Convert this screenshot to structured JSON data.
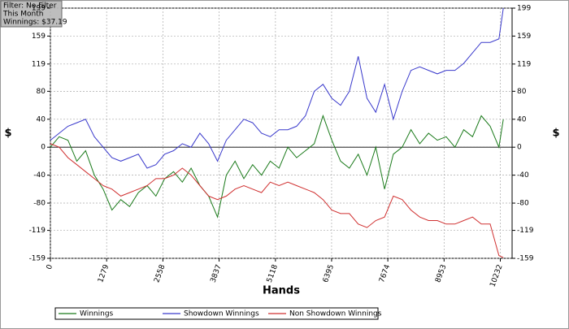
{
  "chart_data": {
    "type": "line",
    "annotations": [
      "Filter: No Filter",
      "This Month",
      "Winnings: $37.19"
    ],
    "x_label": "Hands",
    "y_label": "$",
    "x": [
      0,
      200,
      400,
      600,
      800,
      1000,
      1200,
      1400,
      1600,
      1800,
      2000,
      2200,
      2400,
      2600,
      2800,
      3000,
      3200,
      3400,
      3600,
      3800,
      4000,
      4200,
      4400,
      4600,
      4800,
      5000,
      5200,
      5400,
      5600,
      5800,
      6000,
      6200,
      6400,
      6600,
      6800,
      7000,
      7200,
      7400,
      7600,
      7800,
      8000,
      8200,
      8400,
      8600,
      8800,
      9000,
      9200,
      9400,
      9600,
      9800,
      10000,
      10200,
      10300
    ],
    "series": [
      {
        "name": "Winnings",
        "color": "#1a7a1a",
        "values": [
          0,
          15,
          10,
          -20,
          -5,
          -40,
          -60,
          -90,
          -75,
          -85,
          -65,
          -55,
          -70,
          -45,
          -35,
          -50,
          -30,
          -55,
          -70,
          -100,
          -40,
          -20,
          -45,
          -25,
          -40,
          -20,
          -30,
          0,
          -15,
          -5,
          5,
          45,
          10,
          -20,
          -30,
          -10,
          -40,
          0,
          -60,
          -10,
          0,
          25,
          5,
          20,
          10,
          15,
          0,
          25,
          15,
          45,
          30,
          0,
          40
        ]
      },
      {
        "name": "Showdown Winnings",
        "color": "#3a3acc",
        "values": [
          10,
          20,
          30,
          35,
          40,
          15,
          0,
          -15,
          -20,
          -15,
          -10,
          -30,
          -25,
          -10,
          -5,
          5,
          0,
          20,
          5,
          -20,
          10,
          25,
          40,
          35,
          20,
          15,
          25,
          25,
          30,
          45,
          80,
          90,
          70,
          60,
          80,
          130,
          70,
          50,
          90,
          40,
          80,
          110,
          115,
          110,
          105,
          110,
          110,
          120,
          135,
          150,
          150,
          155,
          199
        ]
      },
      {
        "name": "Non Showdown Winnings",
        "color": "#d03030",
        "values": [
          5,
          0,
          -15,
          -25,
          -35,
          -45,
          -55,
          -60,
          -70,
          -65,
          -60,
          -55,
          -45,
          -45,
          -40,
          -30,
          -40,
          -55,
          -70,
          -75,
          -70,
          -60,
          -55,
          -60,
          -65,
          -50,
          -55,
          -50,
          -55,
          -60,
          -65,
          -75,
          -90,
          -95,
          -95,
          -110,
          -115,
          -105,
          -100,
          -70,
          -75,
          -90,
          -100,
          -105,
          -105,
          -110,
          -110,
          -105,
          -100,
          -110,
          -110,
          -155,
          -158
        ]
      }
    ],
    "xlim": [
      0,
      10500
    ],
    "ylim": [
      -159,
      199
    ],
    "xticks": [
      0,
      1279,
      2558,
      3837,
      5118,
      6395,
      7674,
      8953,
      10232
    ],
    "yticks": [
      -159,
      -119,
      -80,
      -40,
      0,
      40,
      80,
      119,
      159,
      199
    ],
    "grid": true
  }
}
